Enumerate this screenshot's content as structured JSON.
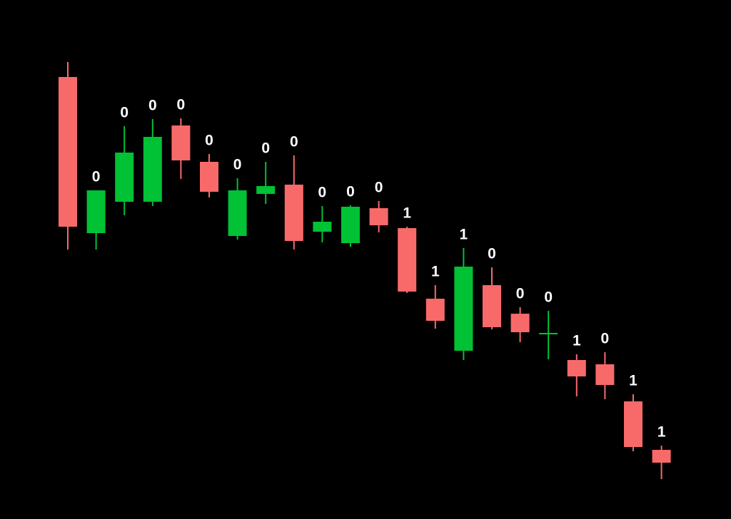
{
  "chart_data": {
    "type": "candlestick",
    "open": [
      620,
      401,
      445,
      445,
      552,
      501,
      397,
      456,
      469,
      403,
      387,
      436,
      408,
      309,
      236,
      328,
      288,
      260,
      223,
      217,
      165,
      97
    ],
    "high": [
      641,
      461,
      551,
      561,
      562,
      512,
      478,
      501,
      510,
      439,
      440,
      446,
      410,
      328,
      380,
      353,
      297,
      292,
      231,
      234,
      175,
      103
    ],
    "low": [
      378,
      378,
      426,
      439,
      477,
      451,
      392,
      442,
      378,
      388,
      382,
      402,
      317,
      267,
      223,
      266,
      248,
      224,
      172,
      168,
      95,
      56
    ],
    "close": [
      410,
      461,
      514,
      536,
      503,
      459,
      461,
      467,
      390,
      417,
      438,
      412,
      319,
      278,
      354,
      269,
      262,
      261,
      200,
      188,
      101,
      79
    ],
    "signals": [
      null,
      0,
      0,
      0,
      0,
      0,
      0,
      0,
      0,
      0,
      0,
      0,
      1,
      1,
      1,
      0,
      0,
      0,
      1,
      0,
      1,
      1
    ],
    "up_color": "#00c234",
    "down_color": "#f86a6a",
    "ylim": [
      0,
      728
    ]
  }
}
